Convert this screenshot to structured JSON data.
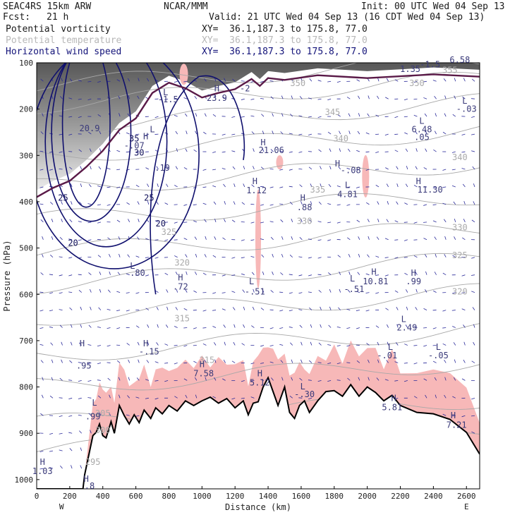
{
  "header": {
    "model": "SEAC4RS 15km ARW",
    "org": "NCAR/MMM",
    "init": "Init: 00 UTC Wed 04 Sep 13",
    "fcst_label": "Fcst:",
    "fcst_value": "21 h",
    "valid": "Valid: 21 UTC Wed 04 Sep 13 (16 CDT Wed 04 Sep 13)",
    "fields": [
      {
        "name": "Potential vorticity",
        "xy": "XY=  36.1,187.3 to 175.8, 77.0"
      },
      {
        "name": "Potential temperature",
        "xy": "XY=  36.1,187.3 to 175.8, 77.0"
      },
      {
        "name": "Horizontal wind speed",
        "xy": "XY=  36.1,187.3 to 175.8, 77.0"
      }
    ]
  },
  "colors": {
    "pv_fill": "#f7b8b8",
    "theta_contour": "#a8a8a8",
    "wind_contour": "#10106e",
    "tropopause": "#5a1a48",
    "terrain": "#000000",
    "vectors": "#2a2a9a"
  },
  "chart_data": {
    "type": "cross-section",
    "xlabel": "Distance (km)",
    "ylabel": "Pressure (hPa)",
    "xlim": [
      0,
      2680
    ],
    "ylim": [
      1020,
      100
    ],
    "x_ticks": [
      "0",
      "200",
      "400",
      "600",
      "800",
      "1000",
      "1200",
      "1400",
      "1600",
      "1800",
      "2000",
      "2200",
      "2400",
      "2600"
    ],
    "y_ticks": [
      "100",
      "200",
      "300",
      "400",
      "500",
      "600",
      "700",
      "800",
      "900",
      "1000"
    ],
    "endpoints": {
      "left": "W",
      "right": "E"
    },
    "terrain": {
      "x": [
        0,
        280,
        290,
        340,
        360,
        380,
        400,
        420,
        450,
        470,
        500,
        530,
        560,
        590,
        620,
        650,
        690,
        720,
        760,
        800,
        850,
        900,
        950,
        1000,
        1050,
        1100,
        1150,
        1200,
        1250,
        1280,
        1310,
        1340,
        1370,
        1400,
        1430,
        1460,
        1500,
        1530,
        1560,
        1590,
        1620,
        1650,
        1700,
        1750,
        1800,
        1850,
        1900,
        1950,
        2000,
        2050,
        2100,
        2150,
        2200,
        2300,
        2400,
        2500,
        2600,
        2680
      ],
      "p": [
        1020,
        1020,
        990,
        905,
        898,
        880,
        905,
        910,
        875,
        900,
        840,
        862,
        880,
        860,
        877,
        850,
        868,
        845,
        858,
        840,
        852,
        830,
        840,
        830,
        822,
        835,
        825,
        845,
        830,
        860,
        835,
        832,
        800,
        780,
        810,
        840,
        800,
        855,
        868,
        840,
        830,
        855,
        830,
        810,
        808,
        820,
        795,
        820,
        800,
        812,
        830,
        818,
        840,
        855,
        858,
        870,
        898,
        945
      ]
    },
    "wind_speed_contours": [
      20,
      25,
      30,
      35
    ],
    "theta_contour_labels": [
      "320",
      "325",
      "330",
      "335",
      "340",
      "345",
      "350",
      "355"
    ],
    "labels": [
      {
        "text": "H",
        "x": 35,
        "p": 968
      },
      {
        "text": "1.03",
        "x": 35,
        "p": 988
      },
      {
        "text": "H",
        "x": 275,
        "p": 712
      },
      {
        "text": ".95",
        "x": 285,
        "p": 760
      },
      {
        "text": "L",
        "x": 350,
        "p": 840
      },
      {
        "text": ".99",
        "x": 340,
        "p": 870
      },
      {
        "text": "H",
        "x": 300,
        "p": 1005
      },
      {
        "text": ".8",
        "x": 320,
        "p": 1020
      },
      {
        "text": "H",
        "x": 660,
        "p": 712
      },
      {
        "text": "-.15",
        "x": 680,
        "p": 730
      },
      {
        "text": "L",
        "x": 780,
        "p": 170
      },
      {
        "text": "-1.5",
        "x": 795,
        "p": 185
      },
      {
        "text": "H",
        "x": 1090,
        "p": 162
      },
      {
        "text": "23.9",
        "x": 1090,
        "p": 182
      },
      {
        "text": "-2",
        "x": 1260,
        "p": 162
      },
      {
        "text": "L",
        "x": 700,
        "p": 250
      },
      {
        "text": ".19",
        "x": 760,
        "p": 333
      },
      {
        "text": "H",
        "x": 660,
        "p": 265
      },
      {
        "text": "20.9",
        "x": 320,
        "p": 248
      },
      {
        "text": "H",
        "x": 1370,
        "p": 278
      },
      {
        "text": "21.06",
        "x": 1420,
        "p": 295
      },
      {
        "text": "H",
        "x": 1320,
        "p": 362
      },
      {
        "text": "1.12",
        "x": 1330,
        "p": 382
      },
      {
        "text": "H",
        "x": 1610,
        "p": 398
      },
      {
        "text": ".88",
        "x": 1620,
        "p": 418
      },
      {
        "text": "L",
        "x": 1880,
        "p": 370
      },
      {
        "text": "4.81",
        "x": 1880,
        "p": 390
      },
      {
        "text": "H",
        "x": 1820,
        "p": 324
      },
      {
        "text": "-.08",
        "x": 1900,
        "p": 338
      },
      {
        "text": "H",
        "x": 2310,
        "p": 362
      },
      {
        "text": "11.30",
        "x": 2380,
        "p": 380
      },
      {
        "text": "L",
        "x": 2330,
        "p": 232
      },
      {
        "text": "6.48",
        "x": 2330,
        "p": 250
      },
      {
        "text": ".05",
        "x": 2330,
        "p": 267
      },
      {
        "text": "-1.5",
        "x": 2380,
        "p": 110
      },
      {
        "text": "6.58",
        "x": 2560,
        "p": 100
      },
      {
        "text": "1.35",
        "x": 2260,
        "p": 120
      },
      {
        "text": "L",
        "x": 2590,
        "p": 188
      },
      {
        "text": "-.03",
        "x": 2600,
        "p": 206
      },
      {
        "text": "H",
        "x": 2040,
        "p": 558
      },
      {
        "text": "10.81",
        "x": 2050,
        "p": 578
      },
      {
        "text": "L",
        "x": 1910,
        "p": 572
      },
      {
        "text": "-.51",
        "x": 1920,
        "p": 595
      },
      {
        "text": "H",
        "x": 2280,
        "p": 560
      },
      {
        "text": ".99",
        "x": 2280,
        "p": 578
      },
      {
        "text": "L",
        "x": 2220,
        "p": 660
      },
      {
        "text": "2.49",
        "x": 2240,
        "p": 678
      },
      {
        "text": "L",
        "x": 2140,
        "p": 720
      },
      {
        "text": "-.01",
        "x": 2120,
        "p": 738
      },
      {
        "text": "L",
        "x": 2430,
        "p": 720
      },
      {
        "text": "-.05",
        "x": 2430,
        "p": 738
      },
      {
        "text": "L",
        "x": 1300,
        "p": 578
      },
      {
        "text": "-.51",
        "x": 1320,
        "p": 600
      },
      {
        "text": "H",
        "x": 2160,
        "p": 830
      },
      {
        "text": "5.81",
        "x": 2150,
        "p": 850
      },
      {
        "text": "H",
        "x": 2520,
        "p": 868
      },
      {
        "text": "7.21",
        "x": 2540,
        "p": 888
      },
      {
        "text": "L",
        "x": 1610,
        "p": 805
      },
      {
        "text": "-.30",
        "x": 1620,
        "p": 822
      },
      {
        "text": "H",
        "x": 1350,
        "p": 777
      },
      {
        "text": "5.12",
        "x": 1350,
        "p": 797
      },
      {
        "text": "H",
        "x": 1000,
        "p": 757
      },
      {
        "text": "7.58",
        "x": 1010,
        "p": 777
      },
      {
        "text": "H",
        "x": 870,
        "p": 570
      },
      {
        "text": ".72",
        "x": 870,
        "p": 590
      },
      {
        "text": "L",
        "x": 580,
        "p": 545
      },
      {
        "text": ".80",
        "x": 610,
        "p": 560
      },
      {
        "text": "-.07",
        "x": 590,
        "p": 285
      }
    ],
    "wind_labels": [
      {
        "text": "35",
        "x": 590,
        "p": 270
      },
      {
        "text": "30",
        "x": 620,
        "p": 300
      },
      {
        "text": "25",
        "x": 680,
        "p": 398
      },
      {
        "text": "20",
        "x": 750,
        "p": 453
      },
      {
        "text": "25",
        "x": 160,
        "p": 398
      },
      {
        "text": "20",
        "x": 220,
        "p": 495
      }
    ],
    "theta_labels": [
      {
        "text": "325",
        "x": 800,
        "p": 472
      },
      {
        "text": "320",
        "x": 880,
        "p": 538
      },
      {
        "text": "315",
        "x": 880,
        "p": 658
      },
      {
        "text": "330",
        "x": 1620,
        "p": 448
      },
      {
        "text": "335",
        "x": 1700,
        "p": 380
      },
      {
        "text": "340",
        "x": 1840,
        "p": 270
      },
      {
        "text": "345",
        "x": 1790,
        "p": 213
      },
      {
        "text": "350",
        "x": 1580,
        "p": 150
      },
      {
        "text": "330",
        "x": 2560,
        "p": 462
      },
      {
        "text": "325",
        "x": 2560,
        "p": 522
      },
      {
        "text": "320",
        "x": 2560,
        "p": 600
      },
      {
        "text": "340",
        "x": 2560,
        "p": 310
      },
      {
        "text": "350",
        "x": 2300,
        "p": 150
      },
      {
        "text": "355",
        "x": 2500,
        "p": 122
      },
      {
        "text": "315",
        "x": 1030,
        "p": 748
      },
      {
        "text": "305",
        "x": 400,
        "p": 863
      },
      {
        "text": "300",
        "x": 400,
        "p": 900
      },
      {
        "text": "295",
        "x": 340,
        "p": 968
      }
    ]
  }
}
